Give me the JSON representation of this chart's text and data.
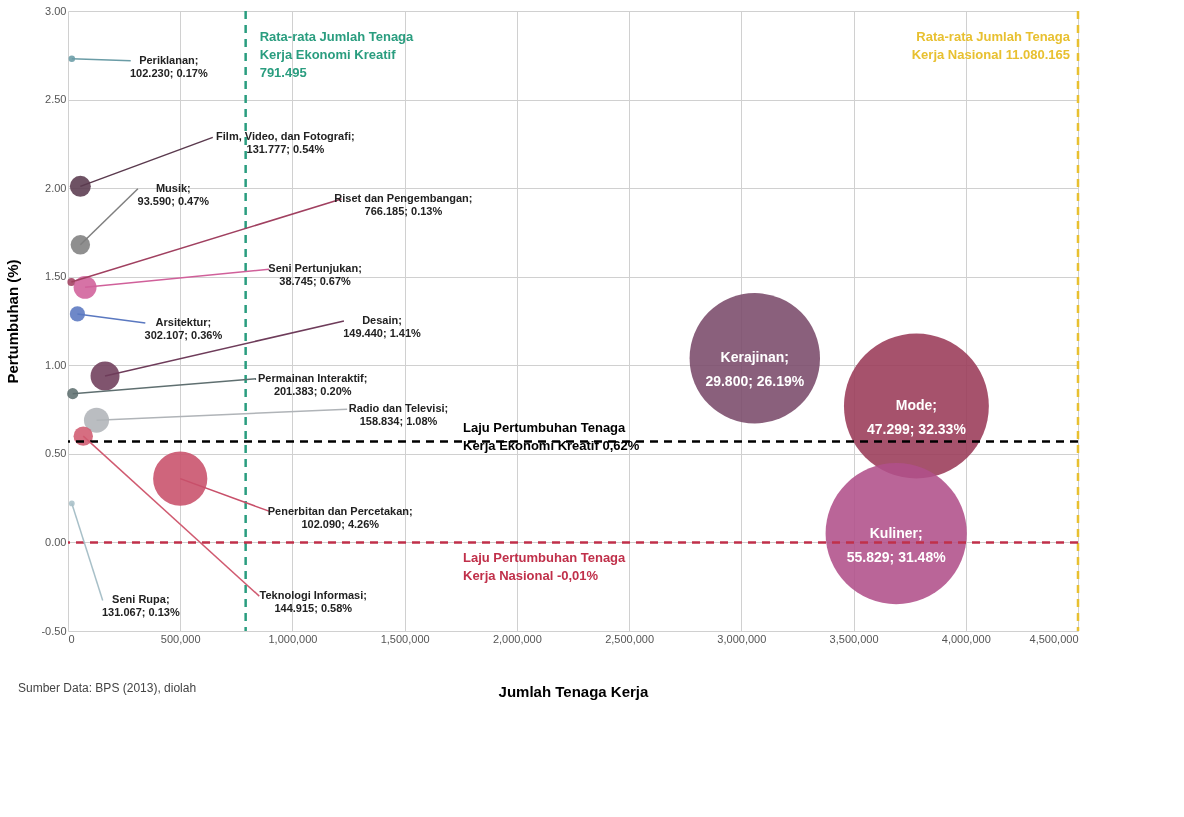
{
  "chart_data": {
    "type": "bubble",
    "xlabel": "Jumlah Tenaga Kerja",
    "ylabel": "Pertumbuhan (%)",
    "xlim": [
      0,
      4500000
    ],
    "ylim": [
      -0.5,
      3.0
    ],
    "xticks": [
      0,
      {
        "value": 500000,
        "label": "500,000"
      },
      {
        "value": 1000000,
        "label": "1,000,000"
      },
      {
        "value": 1500000,
        "label": "1,500,000"
      },
      {
        "value": 2000000,
        "label": "2,000,000"
      },
      {
        "value": 2500000,
        "label": "2,500,000"
      },
      {
        "value": 3000000,
        "label": "3,000,000"
      },
      {
        "value": 3500000,
        "label": "3,500,000"
      },
      {
        "value": 4000000,
        "label": "4,000,000"
      },
      {
        "value": 4500000,
        "label": "4,500,000"
      }
    ],
    "yticks": [
      {
        "value": -0.5,
        "label": "-0.50"
      },
      {
        "value": 0,
        "label": "0.00"
      },
      {
        "value": 0.5,
        "label": "0.50"
      },
      {
        "value": 1.0,
        "label": "1.00"
      },
      {
        "value": 1.5,
        "label": "1.50"
      },
      {
        "value": 2.0,
        "label": "2.00"
      },
      {
        "value": 2.5,
        "label": "2.50"
      },
      {
        "value": 3.0,
        "label": "3.00"
      }
    ],
    "grid": true,
    "legend": false,
    "series": [
      {
        "name": "Periklanan; 102.230; 0.17%",
        "color": "#6a9ca6",
        "x": [
          17000
        ],
        "values": [
          2.73
        ],
        "sizes": [
          0.002
        ]
      },
      {
        "name": "Film, Video, dan Fotografi; 131.777; 0.54%",
        "color": "#5a3a4e",
        "x": [
          55000
        ],
        "values": [
          2.01
        ],
        "sizes": [
          0.021
        ]
      },
      {
        "name": "Musik; 93.590; 0.47%",
        "color": "#7f7f7f",
        "x": [
          55000
        ],
        "values": [
          1.68
        ],
        "sizes": [
          0.018
        ]
      },
      {
        "name": "Riset dan Pengembangan; 766.185; 0.13%",
        "color": "#a04060",
        "x": [
          15000
        ],
        "values": [
          1.47
        ],
        "sizes": [
          0.003
        ]
      },
      {
        "name": "Seni Pertunjukan; 38.745; 0.67%",
        "color": "#d0609a",
        "x": [
          76000
        ],
        "values": [
          1.44
        ],
        "sizes": [
          0.025
        ]
      },
      {
        "name": "Arsitektur; 302.107; 0.36%",
        "color": "#5a78c0",
        "x": [
          42000
        ],
        "values": [
          1.29
        ],
        "sizes": [
          0.011
        ]
      },
      {
        "name": "Desain; 149.440; 1.41%",
        "color": "#6e3c5a",
        "x": [
          165000
        ],
        "values": [
          0.94
        ],
        "sizes": [
          0.04
        ]
      },
      {
        "name": "Permainan Interaktif; 201.383; 0.20%",
        "color": "#5f6f70",
        "x": [
          21000
        ],
        "values": [
          0.84
        ],
        "sizes": [
          0.006
        ]
      },
      {
        "name": "Radio dan Televisi; 158.834; 1.08%",
        "color": "#b0b4b8",
        "x": [
          127000
        ],
        "values": [
          0.69
        ],
        "sizes": [
          0.03
        ]
      },
      {
        "name": "Teknologi Informasi; 144.915; 0.58%",
        "color": "#d05a70",
        "x": [
          68000
        ],
        "values": [
          0.6
        ],
        "sizes": [
          0.018
        ]
      },
      {
        "name": "Penerbitan dan Percetakan; 102.090; 4.26%",
        "color": "#c8506a",
        "x": [
          500000
        ],
        "values": [
          0.36
        ],
        "sizes": [
          0.14
        ]
      },
      {
        "name": "Seni Rupa; 131.067; 0.13%",
        "color": "#a8c0c8",
        "x": [
          17000
        ],
        "values": [
          0.22
        ],
        "sizes": [
          0.0016
        ]
      },
      {
        "name": "Kerajinan; 29.800; 26.19%",
        "color": "#7a4a6a",
        "x": [
          3060000
        ],
        "values": [
          1.04
        ],
        "sizes": [
          0.81
        ]
      },
      {
        "name": "Mode; 47.299; 32.33%",
        "color": "#9a3a58",
        "x": [
          3780000
        ],
        "values": [
          0.77
        ],
        "sizes": [
          1
        ]
      },
      {
        "name": "Kuliner; 55.829; 31.48%",
        "color": "#b0508a",
        "x": [
          3690000
        ],
        "values": [
          0.05
        ],
        "sizes": [
          0.95
        ]
      }
    ],
    "ref_lines": [
      {
        "axis": "x",
        "value": 791495,
        "label": "Rata-rata Jumlah Tenaga\nKerja Ekonomi Kreatif\n791.495",
        "color": "#2a9d7f",
        "line_style": "dashed"
      },
      {
        "axis": "x",
        "value": 4500000,
        "label": "Rata-rata Jumlah Tenaga\nKerja Nasional 11.080.165",
        "color": "#e8c030",
        "line_style": "dashed"
      },
      {
        "axis": "y",
        "value": 0.57,
        "label": "Laju Pertumbuhan Tenaga\nKerja Ekonomi Kreatif 0,62%",
        "color": "#000000",
        "line_style": "dashed"
      },
      {
        "axis": "y",
        "value": 0,
        "label": "Laju Pertumbuhan Tenaga\nKerja Nasional -0,01%",
        "color": "#c0304a",
        "line_style": "dashed"
      }
    ],
    "annotations": [
      "Sumber Data: BPS (2013), diolah"
    ]
  }
}
